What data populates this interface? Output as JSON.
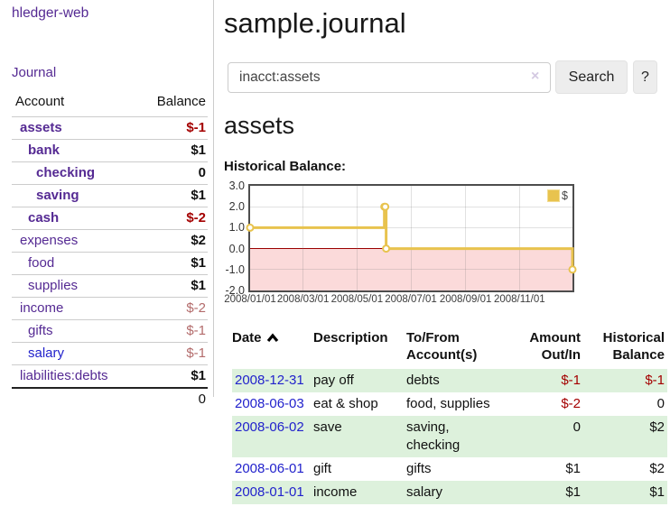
{
  "app": {
    "brand": "hledger-web"
  },
  "sidebar": {
    "journal_link": "Journal",
    "accounts_table": {
      "account_header": "Account",
      "balance_header": "Balance",
      "rows": [
        {
          "name": "assets",
          "balance": "$-1"
        },
        {
          "name": "bank",
          "balance": "$1"
        },
        {
          "name": "checking",
          "balance": "0"
        },
        {
          "name": "saving",
          "balance": "$1"
        },
        {
          "name": "cash",
          "balance": "$-2"
        },
        {
          "name": "expenses",
          "balance": "$2"
        },
        {
          "name": "food",
          "balance": "$1"
        },
        {
          "name": "supplies",
          "balance": "$1"
        },
        {
          "name": "income",
          "balance": "$-2"
        },
        {
          "name": "gifts",
          "balance": "$-1"
        },
        {
          "name": "salary",
          "balance": "$-1"
        },
        {
          "name": "liabilities:debts",
          "balance": "$1"
        }
      ],
      "total": "0"
    }
  },
  "header": {
    "title": "sample.journal"
  },
  "search": {
    "query": "inacct:assets",
    "clear_icon": "×",
    "search_button": "Search",
    "help_button": "?"
  },
  "account_page": {
    "heading": "assets",
    "chart_title": "Historical Balance:"
  },
  "chart_data": {
    "type": "line",
    "title": "Historical Balance",
    "step": true,
    "series": [
      {
        "name": "$",
        "color": "#e8c34e",
        "points": [
          [
            "2008/01/01",
            1
          ],
          [
            "2008/06/01",
            2
          ],
          [
            "2008/06/02",
            2
          ],
          [
            "2008/06/03",
            0
          ],
          [
            "2008/12/31",
            -1
          ]
        ]
      }
    ],
    "xlim": [
      "2008/01/01",
      "2008/12/31"
    ],
    "ylim": [
      -2,
      3
    ],
    "y_ticks": [
      {
        "v": 3,
        "label": "3.0"
      },
      {
        "v": 2,
        "label": "2.0"
      },
      {
        "v": 1,
        "label": "1.0"
      },
      {
        "v": 0,
        "label": "0.0"
      },
      {
        "v": -1,
        "label": "-1.0"
      },
      {
        "v": -2,
        "label": "-2.0"
      }
    ],
    "x_ticks": [
      "2008/01/01",
      "2008/03/01",
      "2008/05/01",
      "2008/07/01",
      "2008/09/01",
      "2008/11/01"
    ],
    "grid": true,
    "legend": {
      "label": "$",
      "position": "top-right"
    },
    "negative_region_color": "#fbdada",
    "zero_line_color": "#9a0000"
  },
  "register": {
    "headers": {
      "date": "Date",
      "description": "Description",
      "account_line1": "To/From",
      "account_line2": "Account(s)",
      "amount_line1": "Amount",
      "amount_line2": "Out/In",
      "balance_line1": "Historical",
      "balance_line2": "Balance"
    },
    "rows": [
      {
        "date": "2008-12-31",
        "description": "pay off",
        "accounts": "debts",
        "amount": "$-1",
        "balance": "$-1"
      },
      {
        "date": "2008-06-03",
        "description": "eat & shop",
        "accounts": "food, supplies",
        "amount": "$-2",
        "balance": "0"
      },
      {
        "date": "2008-06-02",
        "description": "save",
        "accounts": "saving, checking",
        "amount": "0",
        "balance": "$2"
      },
      {
        "date": "2008-06-01",
        "description": "gift",
        "accounts": "gifts",
        "amount": "$1",
        "balance": "$2"
      },
      {
        "date": "2008-01-01",
        "description": "income",
        "accounts": "salary",
        "amount": "$1",
        "balance": "$1"
      }
    ]
  },
  "colors": {
    "accent_purple": "#552a93",
    "link_blue": "#2222cc",
    "negative_strong": "#a40000",
    "negative_soft": "#b36b6b",
    "row_green": "#ddf1dc",
    "chart_line": "#e8c34e"
  }
}
